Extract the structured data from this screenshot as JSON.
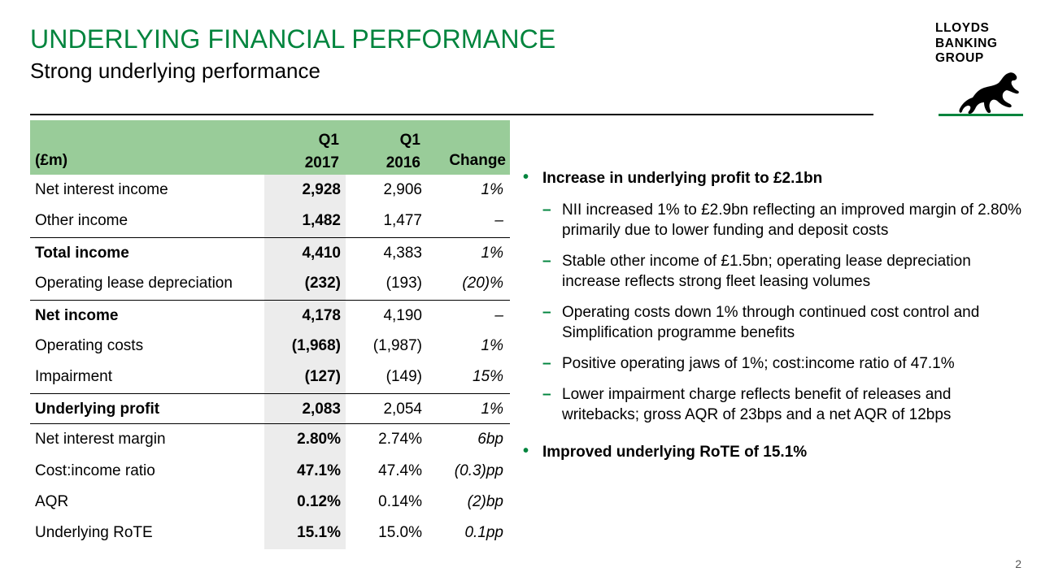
{
  "header": {
    "title": "UNDERLYING FINANCIAL PERFORMANCE",
    "subtitle": "Strong underlying performance"
  },
  "logo": {
    "line1": "LLOYDS",
    "line2": "BANKING",
    "line3": "GROUP",
    "brand_color": "#00843d",
    "icon": "black-horse-icon"
  },
  "table": {
    "header": {
      "label": "(£m)",
      "col1_line1": "Q1",
      "col1_line2": "2017",
      "col2_line1": "Q1",
      "col2_line2": "2016",
      "col3": "Change"
    },
    "rows": [
      {
        "label": "Net interest income",
        "q1_2017": "2,928",
        "q1_2016": "2,906",
        "change": "1%"
      },
      {
        "label": "Other income",
        "q1_2017": "1,482",
        "q1_2016": "1,477",
        "change": "–"
      },
      {
        "label": "Total income",
        "q1_2017": "4,410",
        "q1_2016": "4,383",
        "change": "1%"
      },
      {
        "label": "Operating lease depreciation",
        "q1_2017": "(232)",
        "q1_2016": "(193)",
        "change": "(20)%"
      },
      {
        "label": "Net income",
        "q1_2017": "4,178",
        "q1_2016": "4,190",
        "change": "–"
      },
      {
        "label": "Operating costs",
        "q1_2017": "(1,968)",
        "q1_2016": "(1,987)",
        "change": "1%"
      },
      {
        "label": "Impairment",
        "q1_2017": "(127)",
        "q1_2016": "(149)",
        "change": "15%"
      },
      {
        "label": "Underlying profit",
        "q1_2017": "2,083",
        "q1_2016": "2,054",
        "change": "1%"
      },
      {
        "label": "Net interest margin",
        "q1_2017": "2.80%",
        "q1_2016": "2.74%",
        "change": "6bp"
      },
      {
        "label": "Cost:income ratio",
        "q1_2017": "47.1%",
        "q1_2016": "47.4%",
        "change": "(0.3)pp"
      },
      {
        "label": "AQR",
        "q1_2017": "0.12%",
        "q1_2016": "0.14%",
        "change": "(2)bp"
      },
      {
        "label": "Underlying RoTE",
        "q1_2017": "15.1%",
        "q1_2016": "15.0%",
        "change": "0.1pp"
      }
    ]
  },
  "bullets": {
    "main1": "Increase in underlying profit to £2.1bn",
    "sub1": "NII increased 1% to £2.9bn reflecting an improved margin of 2.80% primarily due to lower funding and deposit costs",
    "sub2": "Stable other income of £1.5bn; operating lease depreciation increase reflects strong fleet leasing volumes",
    "sub3": "Operating costs down 1% through continued cost control and Simplification programme benefits",
    "sub4": "Positive operating jaws of 1%; cost:income ratio of 47.1%",
    "sub5": "Lower impairment charge reflects benefit of releases and writebacks; gross AQR of 23bps and a net AQR of 12bps",
    "main2": "Improved underlying RoTE of 15.1%"
  },
  "page_number": "2"
}
